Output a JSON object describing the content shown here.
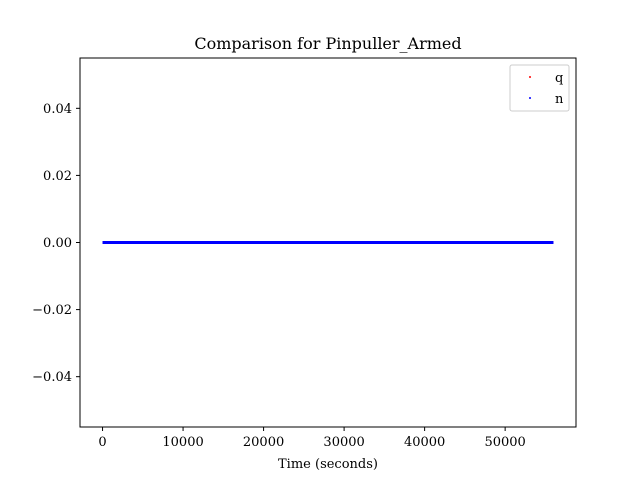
{
  "chart_data": {
    "type": "scatter",
    "title": "Comparison for Pinpuller_Armed",
    "xlabel": "Time (seconds)",
    "ylabel": "",
    "xlim": [
      -2800,
      58800
    ],
    "ylim": [
      -0.055,
      0.055
    ],
    "xticks": [
      0,
      10000,
      20000,
      30000,
      40000,
      50000
    ],
    "xtick_labels": [
      "0",
      "10000",
      "20000",
      "30000",
      "40000",
      "50000"
    ],
    "yticks": [
      0.04,
      0.02,
      0.0,
      -0.02,
      -0.04
    ],
    "ytick_labels": [
      "0.04",
      "0.02",
      "0.00",
      "−0.02",
      "−0.04"
    ],
    "grid": false,
    "legend_position": "top-right",
    "series": [
      {
        "name": "q",
        "color": "#ff0000",
        "x_range": [
          0,
          56000
        ],
        "y": 0
      },
      {
        "name": "n",
        "color": "#0000ff",
        "x_range": [
          0,
          56000
        ],
        "y": 0
      }
    ]
  }
}
